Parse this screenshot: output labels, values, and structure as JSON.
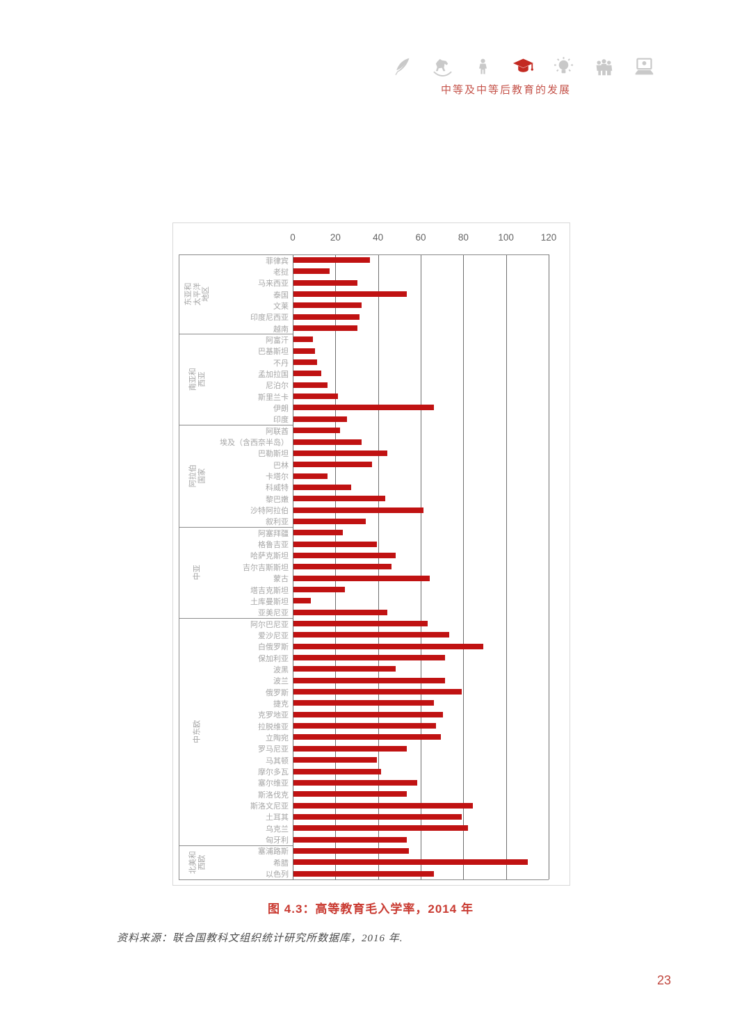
{
  "header": {
    "title": "中等及中等后教育的发展",
    "icons": [
      {
        "name": "quill-icon",
        "highlighted": false
      },
      {
        "name": "rocking-horse-icon",
        "highlighted": false
      },
      {
        "name": "child-icon",
        "highlighted": false
      },
      {
        "name": "graduation-cap-icon",
        "highlighted": true
      },
      {
        "name": "lightbulb-icon",
        "highlighted": false
      },
      {
        "name": "people-icon",
        "highlighted": false
      },
      {
        "name": "computer-icon",
        "highlighted": false
      }
    ]
  },
  "colors": {
    "bar": "#c01212",
    "accent_red": "#c93a31",
    "icon_gray": "#c9c9c9",
    "icon_red": "#c32a22",
    "grid": "#6e6e6e",
    "label_gray": "#a5a5a5"
  },
  "chart_data": {
    "type": "bar",
    "orientation": "horizontal",
    "title": "图 4.3：高等教育毛入学率，2014 年",
    "xlabel": "",
    "ylabel": "",
    "xlim": [
      0,
      120
    ],
    "xticks": [
      0,
      20,
      40,
      60,
      80,
      100,
      120
    ],
    "grid": "vertical",
    "legend": "none",
    "groups": [
      {
        "region": "东亚和太平洋地区",
        "categories": [
          "菲律宾",
          "老挝",
          "马来西亚",
          "泰国",
          "文莱",
          "印度尼西亚",
          "越南"
        ],
        "values": [
          36,
          17,
          30,
          53,
          32,
          31,
          30
        ]
      },
      {
        "region": "南亚和西亚",
        "categories": [
          "阿富汗",
          "巴基斯坦",
          "不丹",
          "孟加拉国",
          "尼泊尔",
          "斯里兰卡",
          "伊朗",
          "印度"
        ],
        "values": [
          9,
          10,
          11,
          13,
          16,
          21,
          66,
          25
        ]
      },
      {
        "region": "阿拉伯国家",
        "categories": [
          "阿联酋",
          "埃及（含西奈半岛）",
          "巴勒斯坦",
          "巴林",
          "卡塔尔",
          "科威特",
          "黎巴嫩",
          "沙特阿拉伯",
          "叙利亚"
        ],
        "values": [
          22,
          32,
          44,
          37,
          16,
          27,
          43,
          61,
          34
        ]
      },
      {
        "region": "中亚",
        "categories": [
          "阿塞拜疆",
          "格鲁吉亚",
          "哈萨克斯坦",
          "吉尔吉斯斯坦",
          "蒙古",
          "塔吉克斯坦",
          "土库曼斯坦",
          "亚美尼亚"
        ],
        "values": [
          23,
          39,
          48,
          46,
          64,
          24,
          8,
          44
        ]
      },
      {
        "region": "中东欧",
        "categories": [
          "阿尔巴尼亚",
          "爱沙尼亚",
          "白俄罗斯",
          "保加利亚",
          "波黑",
          "波兰",
          "俄罗斯",
          "捷克",
          "克罗地亚",
          "拉脱维亚",
          "立陶宛",
          "罗马尼亚",
          "马其顿",
          "摩尔多瓦",
          "塞尔维亚",
          "斯洛伐克",
          "斯洛文尼亚",
          "土耳其",
          "乌克兰",
          "匈牙利"
        ],
        "values": [
          63,
          73,
          89,
          71,
          48,
          71,
          79,
          66,
          70,
          67,
          69,
          53,
          39,
          41,
          58,
          53,
          84,
          79,
          82,
          53
        ]
      },
      {
        "region": "北美和西欧",
        "categories": [
          "塞浦路斯",
          "希腊",
          "以色列"
        ],
        "values": [
          54,
          110,
          66
        ]
      }
    ]
  },
  "caption": "图 4.3：高等教育毛入学率，2014 年",
  "source": "资料来源：联合国教科文组织统计研究所数据库，2016 年.",
  "page_number": "23"
}
